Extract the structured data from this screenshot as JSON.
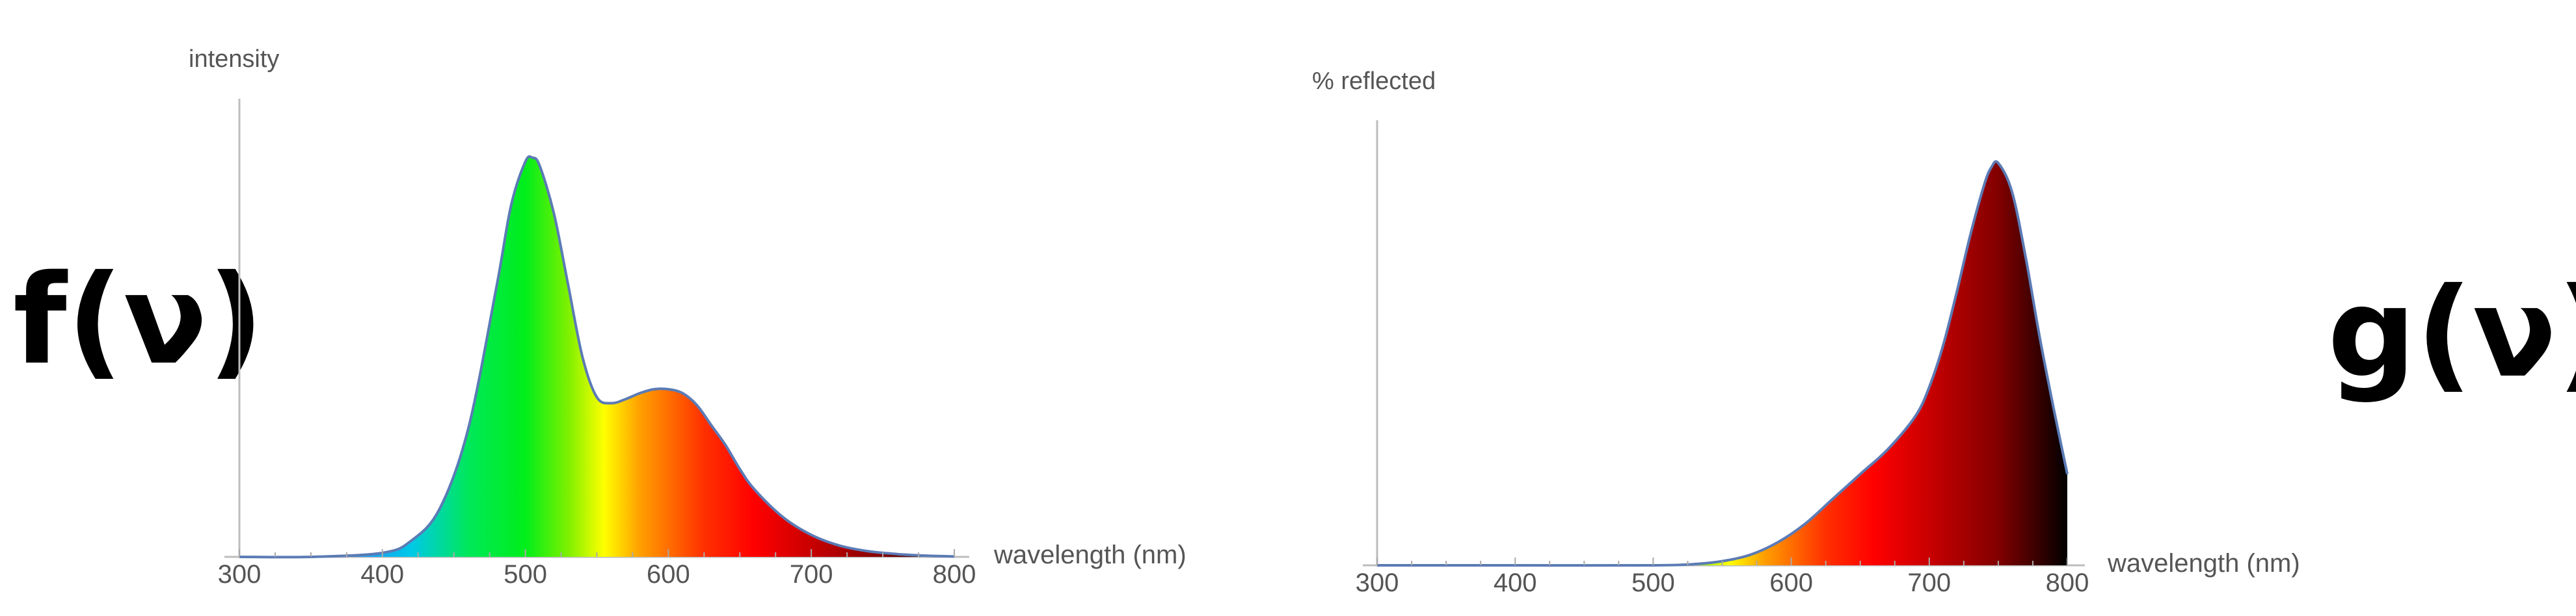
{
  "labels": {
    "left_function": "f(ν)",
    "right_function": "g(ν)"
  },
  "colors": {
    "axis": "#bdbdbd",
    "curve_stroke": "#5b7bb5",
    "text": "#555555"
  },
  "chart_data": [
    {
      "type": "area",
      "ylabel": "intensity",
      "xlabel": "wavelength (nm)",
      "xlim": [
        300,
        800
      ],
      "x_ticks": [
        300,
        400,
        500,
        600,
        700,
        800
      ],
      "ylim": [
        0,
        1.05
      ],
      "grid": false,
      "fill": "spectral",
      "series": [
        {
          "x": [
            300,
            350,
            400,
            420,
            440,
            460,
            480,
            490,
            500,
            505,
            510,
            520,
            530,
            540,
            550,
            560,
            570,
            580,
            590,
            600,
            610,
            620,
            630,
            640,
            650,
            660,
            680,
            700,
            720,
            740,
            760,
            780,
            800
          ],
          "values": [
            0.0,
            0.0,
            0.01,
            0.04,
            0.12,
            0.32,
            0.68,
            0.88,
            0.99,
            1.0,
            0.98,
            0.86,
            0.68,
            0.5,
            0.4,
            0.385,
            0.395,
            0.41,
            0.42,
            0.42,
            0.41,
            0.38,
            0.33,
            0.28,
            0.22,
            0.17,
            0.1,
            0.055,
            0.028,
            0.014,
            0.007,
            0.003,
            0.001
          ]
        }
      ]
    },
    {
      "type": "area",
      "ylabel": "% reflected",
      "xlabel": "wavelength (nm)",
      "xlim": [
        300,
        800
      ],
      "x_ticks": [
        300,
        400,
        500,
        600,
        700,
        800
      ],
      "ylim": [
        0,
        1.05
      ],
      "grid": false,
      "fill": "spectral",
      "series": [
        {
          "x": [
            300,
            400,
            500,
            530,
            550,
            570,
            590,
            610,
            630,
            650,
            670,
            690,
            700,
            710,
            720,
            730,
            740,
            745,
            750,
            760,
            770,
            780,
            790,
            800
          ],
          "values": [
            0.0,
            0.0,
            0.0,
            0.003,
            0.01,
            0.025,
            0.055,
            0.1,
            0.16,
            0.22,
            0.28,
            0.36,
            0.43,
            0.53,
            0.66,
            0.8,
            0.92,
            0.96,
            0.97,
            0.9,
            0.74,
            0.55,
            0.38,
            0.22
          ]
        }
      ]
    }
  ]
}
